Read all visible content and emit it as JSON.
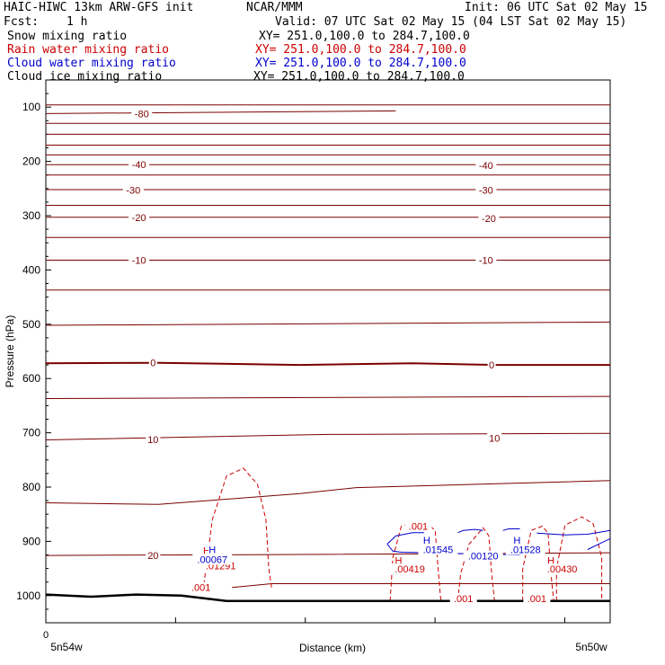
{
  "header": {
    "title": "HAIC-HIWC 13km ARW-GFS init",
    "center": "NCAR/MMM",
    "init": "Init: 06 UTC Sat 02 May 15",
    "fcst_label": "Fcst:",
    "fcst_value": "1 h",
    "valid": "Valid: 07 UTC Sat 02 May 15 (04 LST Sat 02 May 15)"
  },
  "legend": [
    {
      "name": "Snow mixing ratio",
      "xy": "XY= 251.0,100.0 to 284.7,100.0",
      "color": "#000000"
    },
    {
      "name": "Rain water mixing ratio",
      "xy": "XY= 251.0,100.0 to 284.7,100.0",
      "color": "#cc0000"
    },
    {
      "name": "Cloud water mixing ratio",
      "xy": "XY= 251.0,100.0 to 284.7,100.0",
      "color": "#0000cc"
    },
    {
      "name": "Cloud ice mixing ratio",
      "xy": "XY= 251.0,100.0 to 284.7,100.0",
      "color": "#000000"
    }
  ],
  "chart_data": {
    "type": "line",
    "ylabel": "Pressure (hPa)",
    "xlabel": "Distance (km)",
    "x_tick_labels": [
      "0"
    ],
    "x_left_label": "5n54w",
    "x_right_label": "5n50w",
    "ylim": [
      1050,
      50
    ],
    "y_ticks": [
      100,
      200,
      300,
      400,
      500,
      600,
      700,
      800,
      900,
      1000
    ],
    "xlim": [
      0,
      100
    ],
    "isotherm_color": "#7a0000",
    "rain_color": "#cc0000",
    "cloud_color": "#0000cc",
    "isotherm_labels": [
      {
        "text": "-80",
        "x": 17,
        "p": 112
      },
      {
        "text": "-40",
        "x": 16.5,
        "p": 206
      },
      {
        "text": "-40",
        "x": 78,
        "p": 207
      },
      {
        "text": "-30",
        "x": 15.5,
        "p": 253
      },
      {
        "text": "-30",
        "x": 78,
        "p": 253
      },
      {
        "text": "-20",
        "x": 16.5,
        "p": 303
      },
      {
        "text": "-20",
        "x": 78.5,
        "p": 305
      },
      {
        "text": "-10",
        "x": 16.5,
        "p": 382
      },
      {
        "text": "-10",
        "x": 78,
        "p": 382
      },
      {
        "text": "0",
        "x": 19,
        "p": 571
      },
      {
        "text": "0",
        "x": 79,
        "p": 575
      },
      {
        "text": "10",
        "x": 19,
        "p": 712
      },
      {
        "text": "10",
        "x": 79.5,
        "p": 710
      },
      {
        "text": "20",
        "x": 19,
        "p": 926
      }
    ],
    "rain_labels": [
      {
        "text": ".001",
        "x": 66,
        "p": 872
      },
      {
        "text": ".001",
        "x": 27.5,
        "p": 985
      },
      {
        "text": ".001",
        "x": 74,
        "p": 1005
      },
      {
        "text": ".001",
        "x": 87,
        "p": 1005
      },
      {
        "text": "H",
        "x": 28.5,
        "p": 917
      },
      {
        "text": ".01291",
        "x": 31,
        "p": 945
      },
      {
        "text": "H",
        "x": 62.5,
        "p": 935
      },
      {
        "text": ".00419",
        "x": 64.5,
        "p": 951
      },
      {
        "text": "H",
        "x": 89.5,
        "p": 935
      },
      {
        "text": ".00430",
        "x": 91.5,
        "p": 951
      }
    ],
    "cloud_labels": [
      {
        "text": "H",
        "x": 29.5,
        "p": 915
      },
      {
        "text": ".00067",
        "x": 29.5,
        "p": 933
      },
      {
        "text": "H",
        "x": 67.5,
        "p": 898
      },
      {
        "text": ".01545",
        "x": 69.5,
        "p": 915
      },
      {
        "text": ".00120",
        "x": 77.5,
        "p": 927
      },
      {
        "text": "H",
        "x": 83.5,
        "p": 898
      },
      {
        "text": ".01528",
        "x": 85,
        "p": 915
      }
    ],
    "isotherms": [
      {
        "w": 1,
        "pts": [
          [
            0,
            96
          ],
          [
            100,
            96
          ]
        ]
      },
      {
        "w": 1,
        "pts": [
          [
            0,
            112
          ],
          [
            62,
            107
          ]
        ]
      },
      {
        "w": 1,
        "pts": [
          [
            0,
            130
          ],
          [
            100,
            130
          ]
        ]
      },
      {
        "w": 1,
        "pts": [
          [
            0,
            150
          ],
          [
            100,
            150
          ]
        ]
      },
      {
        "w": 1,
        "pts": [
          [
            0,
            170
          ],
          [
            100,
            170
          ]
        ]
      },
      {
        "w": 1,
        "pts": [
          [
            0,
            188
          ],
          [
            100,
            188
          ]
        ]
      },
      {
        "w": 1,
        "pts": [
          [
            0,
            206
          ],
          [
            100,
            206
          ]
        ]
      },
      {
        "w": 1,
        "pts": [
          [
            0,
            225
          ],
          [
            100,
            225
          ]
        ]
      },
      {
        "w": 1,
        "pts": [
          [
            0,
            252
          ],
          [
            100,
            252
          ]
        ]
      },
      {
        "w": 1,
        "pts": [
          [
            0,
            281
          ],
          [
            100,
            281
          ]
        ]
      },
      {
        "w": 1,
        "pts": [
          [
            0,
            303
          ],
          [
            100,
            303
          ]
        ]
      },
      {
        "w": 1,
        "pts": [
          [
            0,
            340
          ],
          [
            100,
            340
          ]
        ]
      },
      {
        "w": 1,
        "pts": [
          [
            0,
            382
          ],
          [
            100,
            382
          ]
        ]
      },
      {
        "w": 1,
        "pts": [
          [
            0,
            437
          ],
          [
            100,
            437
          ]
        ]
      },
      {
        "w": 1,
        "pts": [
          [
            0,
            502
          ],
          [
            100,
            496
          ]
        ]
      },
      {
        "w": 2,
        "pts": [
          [
            0,
            572
          ],
          [
            20,
            571
          ],
          [
            45,
            575
          ],
          [
            65,
            572
          ],
          [
            80,
            575
          ],
          [
            100,
            575
          ]
        ]
      },
      {
        "w": 1,
        "pts": [
          [
            0,
            637
          ],
          [
            100,
            633
          ]
        ]
      },
      {
        "w": 1,
        "pts": [
          [
            0,
            713
          ],
          [
            50,
            703
          ],
          [
            100,
            701
          ]
        ]
      },
      {
        "w": 1,
        "pts": [
          [
            0,
            829
          ],
          [
            20,
            832
          ],
          [
            45,
            812
          ],
          [
            55,
            801
          ],
          [
            100,
            788
          ]
        ]
      },
      {
        "w": 1,
        "pts": [
          [
            0,
            926
          ],
          [
            50,
            924
          ],
          [
            100,
            921
          ]
        ]
      },
      {
        "w": 1,
        "pts": [
          [
            33,
            985
          ],
          [
            40,
            978
          ],
          [
            100,
            978
          ]
        ]
      }
    ],
    "ground": [
      [
        0,
        998
      ],
      [
        8,
        1002
      ],
      [
        16,
        998
      ],
      [
        24,
        1000
      ],
      [
        32,
        1010
      ],
      [
        100,
        1010
      ]
    ],
    "rain_contours": [
      [
        [
          28,
          980
        ],
        [
          29.5,
          860
        ],
        [
          32,
          780
        ],
        [
          35,
          765
        ],
        [
          37.5,
          795
        ],
        [
          39,
          860
        ],
        [
          39.5,
          950
        ],
        [
          40,
          985
        ]
      ],
      [
        [
          61,
          1010
        ],
        [
          61.5,
          930
        ],
        [
          63,
          872
        ],
        [
          67,
          862
        ],
        [
          69,
          880
        ],
        [
          69.5,
          950
        ],
        [
          70,
          1010
        ]
      ],
      [
        [
          73,
          1010
        ],
        [
          73.5,
          960
        ],
        [
          75,
          905
        ],
        [
          77.5,
          875
        ],
        [
          78.5,
          890
        ],
        [
          79,
          960
        ],
        [
          79.5,
          1010
        ]
      ],
      [
        [
          84.5,
          1010
        ],
        [
          84.5,
          950
        ],
        [
          86,
          880
        ],
        [
          88,
          872
        ],
        [
          89,
          885
        ],
        [
          89.5,
          960
        ],
        [
          90,
          1010
        ]
      ],
      [
        [
          90.5,
          1010
        ],
        [
          90.5,
          950
        ],
        [
          92,
          870
        ],
        [
          95,
          855
        ],
        [
          97,
          868
        ],
        [
          98.5,
          930
        ],
        [
          98.5,
          1010
        ]
      ]
    ],
    "cloud_contours": [
      [
        [
          60.5,
          905
        ],
        [
          62,
          890
        ],
        [
          65,
          884
        ],
        [
          67,
          884
        ]
      ],
      [
        [
          60.5,
          905
        ],
        [
          61.5,
          918
        ],
        [
          63,
          920
        ],
        [
          72,
          922
        ],
        [
          84,
          925
        ]
      ],
      [
        [
          73,
          884
        ],
        [
          74,
          880
        ],
        [
          76,
          878
        ],
        [
          77.5,
          880
        ]
      ],
      [
        [
          81,
          880
        ],
        [
          82,
          877
        ],
        [
          84,
          877
        ]
      ],
      [
        [
          87,
          885
        ],
        [
          92,
          888
        ],
        [
          96,
          887
        ],
        [
          100,
          880
        ]
      ],
      [
        [
          96,
          915
        ],
        [
          98,
          905
        ],
        [
          100,
          895
        ]
      ]
    ]
  }
}
